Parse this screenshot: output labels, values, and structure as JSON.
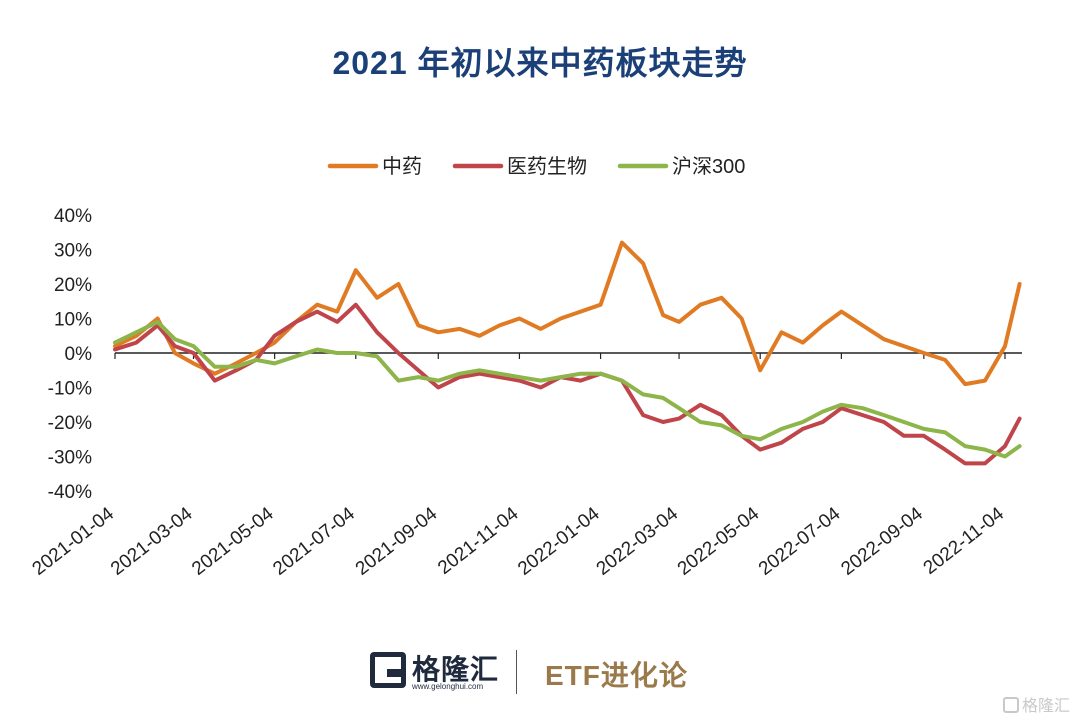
{
  "header": {
    "title": "2021 年初以来中药板块走势"
  },
  "footer": {
    "logo_text": "格隆汇",
    "logo_url": "www.gelonghui.com",
    "brand": "ETF进化论",
    "watermark": "格隆汇"
  },
  "chart_data": {
    "type": "line",
    "title": "2021 年初以来中药板块走势",
    "xlabel": "",
    "ylabel": "",
    "x_ticks": [
      "2021-01-04",
      "2021-03-04",
      "2021-05-04",
      "2021-07-04",
      "2021-09-04",
      "2021-11-04",
      "2022-01-04",
      "2022-03-04",
      "2022-05-04",
      "2022-07-04",
      "2022-09-04",
      "2022-11-04"
    ],
    "y_ticks": [
      "40%",
      "30%",
      "20%",
      "10%",
      "0%",
      "-10%",
      "-20%",
      "-30%",
      "-40%"
    ],
    "ylim": [
      -40,
      40
    ],
    "legend_position": "top-center",
    "grid": false,
    "x": [
      "2021-01-04",
      "2021-01-20",
      "2021-02-05",
      "2021-02-18",
      "2021-03-04",
      "2021-03-20",
      "2021-04-05",
      "2021-04-20",
      "2021-05-04",
      "2021-05-20",
      "2021-06-05",
      "2021-06-20",
      "2021-07-04",
      "2021-07-20",
      "2021-08-05",
      "2021-08-20",
      "2021-09-04",
      "2021-09-20",
      "2021-10-05",
      "2021-10-20",
      "2021-11-04",
      "2021-11-20",
      "2021-12-05",
      "2021-12-20",
      "2022-01-04",
      "2022-01-20",
      "2022-02-05",
      "2022-02-20",
      "2022-03-04",
      "2022-03-20",
      "2022-04-05",
      "2022-04-20",
      "2022-05-04",
      "2022-05-20",
      "2022-06-05",
      "2022-06-20",
      "2022-07-04",
      "2022-07-20",
      "2022-08-05",
      "2022-08-20",
      "2022-09-04",
      "2022-09-20",
      "2022-10-05",
      "2022-10-20",
      "2022-11-04",
      "2022-11-15"
    ],
    "series": [
      {
        "name": "中药",
        "color": "#e07b23",
        "values": [
          2,
          5,
          10,
          0,
          -3,
          -6,
          -3,
          0,
          3,
          9,
          14,
          12,
          24,
          16,
          20,
          8,
          6,
          7,
          5,
          8,
          10,
          7,
          10,
          12,
          14,
          32,
          26,
          11,
          9,
          14,
          16,
          10,
          -5,
          6,
          3,
          8,
          12,
          8,
          4,
          2,
          0,
          -2,
          -9,
          -8,
          2,
          20
        ]
      },
      {
        "name": "医药生物",
        "color": "#c0454a",
        "values": [
          1,
          3,
          8,
          2,
          0,
          -8,
          -5,
          -2,
          5,
          9,
          12,
          9,
          14,
          6,
          0,
          -5,
          -10,
          -7,
          -6,
          -7,
          -8,
          -10,
          -7,
          -8,
          -6,
          -8,
          -18,
          -20,
          -19,
          -15,
          -18,
          -24,
          -28,
          -26,
          -22,
          -20,
          -16,
          -18,
          -20,
          -24,
          -24,
          -28,
          -32,
          -32,
          -27,
          -19
        ]
      },
      {
        "name": "沪深300",
        "color": "#8db54a",
        "values": [
          3,
          6,
          9,
          4,
          2,
          -4,
          -4,
          -2,
          -3,
          -1,
          1,
          0,
          0,
          -1,
          -8,
          -7,
          -8,
          -6,
          -5,
          -6,
          -7,
          -8,
          -7,
          -6,
          -6,
          -8,
          -12,
          -13,
          -16,
          -20,
          -21,
          -24,
          -25,
          -22,
          -20,
          -17,
          -15,
          -16,
          -18,
          -20,
          -22,
          -23,
          -27,
          -28,
          -30,
          -27
        ]
      }
    ]
  }
}
